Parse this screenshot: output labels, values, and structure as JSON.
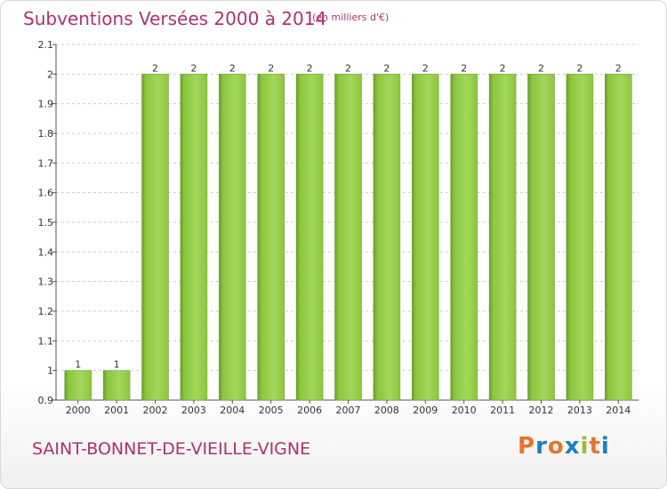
{
  "header": {
    "title": "Subventions Versées 2000 à 2014",
    "subtitle": "(en milliers d'€)"
  },
  "footer": {
    "commune": "SAINT-BONNET-DE-VIEILLE-VIGNE",
    "logo_text": "Proxiti",
    "logo_colors": [
      "#e8732b",
      "#1f7fc4",
      "#e8732b",
      "#1f7fc4",
      "#9bbf2c",
      "#e8732b",
      "#1f7fc4"
    ]
  },
  "colors": {
    "bar_fill": "#8cc63f",
    "bar_top": "#a3d65a",
    "bar_edge": "#6a9e2a",
    "accent": "#b0306e"
  },
  "chart_data": {
    "type": "bar",
    "title": "Subventions Versées 2000 à 2014",
    "subtitle": "(en milliers d'€)",
    "categories": [
      "2000",
      "2001",
      "2002",
      "2003",
      "2004",
      "2005",
      "2006",
      "2007",
      "2008",
      "2009",
      "2010",
      "2011",
      "2012",
      "2013",
      "2014"
    ],
    "values": [
      1,
      1,
      2,
      2,
      2,
      2,
      2,
      2,
      2,
      2,
      2,
      2,
      2,
      2,
      2
    ],
    "value_labels": [
      "1",
      "1",
      "2",
      "2",
      "2",
      "2",
      "2",
      "2",
      "2",
      "2",
      "2",
      "2",
      "2",
      "2",
      "2"
    ],
    "ylim": [
      0.9,
      2.1
    ],
    "yticks": [
      0.9,
      1,
      1.1,
      1.2,
      1.3,
      1.4,
      1.5,
      1.6,
      1.7,
      1.8,
      1.9,
      2,
      2.1
    ],
    "ytick_labels": [
      "0.9",
      "1",
      "1.1",
      "1.2",
      "1.3",
      "1.4",
      "1.5",
      "1.6",
      "1.7",
      "1.8",
      "1.9",
      "2",
      "2.1"
    ],
    "grid": true,
    "xlabel": "",
    "ylabel": ""
  }
}
